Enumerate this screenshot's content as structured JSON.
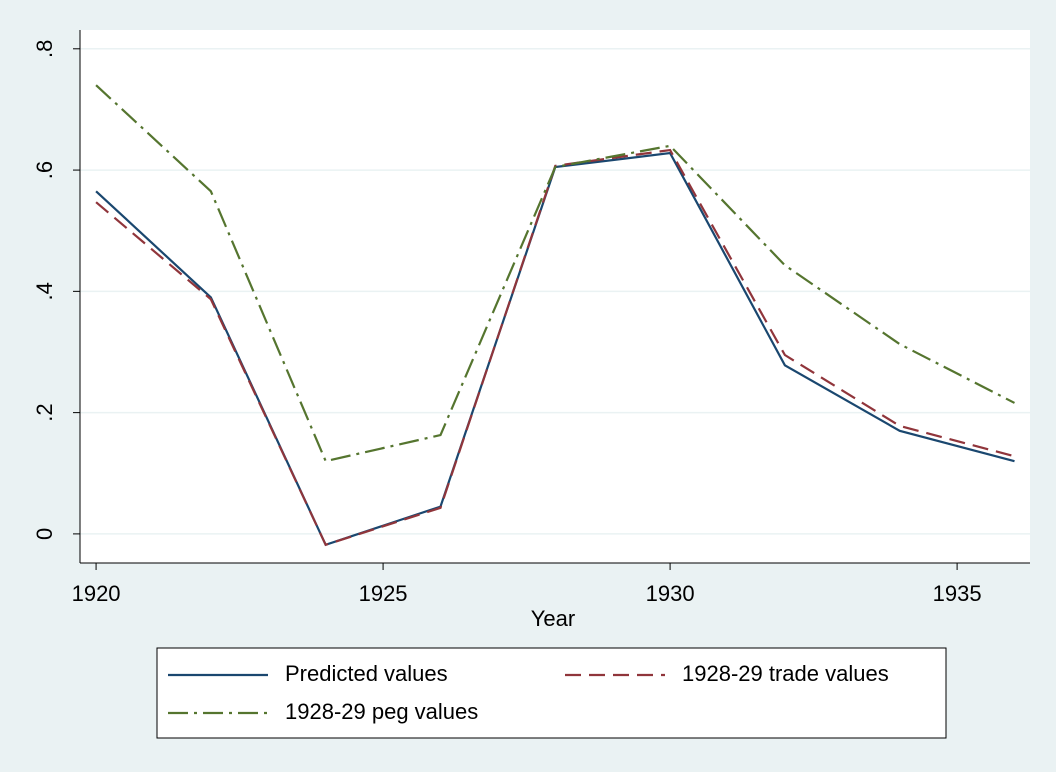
{
  "chart_data": {
    "type": "line",
    "x_label": "Year",
    "x": [
      1920,
      1922,
      1924,
      1926,
      1928,
      1930,
      1932,
      1934,
      1936
    ],
    "series": [
      {
        "name": "Predicted values",
        "color": "#1a476f",
        "style": "solid",
        "values": [
          0.565,
          0.39,
          -0.018,
          0.045,
          0.605,
          0.628,
          0.278,
          0.17,
          0.12
        ]
      },
      {
        "name": "1928-29 trade values",
        "color": "#90353b",
        "style": "dash",
        "values": [
          0.547,
          0.387,
          -0.018,
          0.043,
          0.607,
          0.633,
          0.295,
          0.178,
          0.128
        ]
      },
      {
        "name": "1928-29 peg values",
        "color": "#55752f",
        "style": "dashdot",
        "values": [
          0.74,
          0.565,
          0.12,
          0.163,
          0.605,
          0.64,
          0.443,
          0.313,
          0.216
        ]
      }
    ],
    "xlim": [
      1919.72,
      1936.27
    ],
    "xticks": [
      1920,
      1925,
      1930,
      1935
    ],
    "ylim": [
      -0.048,
      0.831
    ],
    "yticks": [
      0,
      {
        "value": 0.2,
        "label": ".2"
      },
      {
        "value": 0.4,
        "label": ".4"
      },
      {
        "value": 0.6,
        "label": ".6"
      },
      {
        "value": 0.8,
        "label": ".8"
      }
    ],
    "grid": true,
    "legend": "bottom"
  }
}
